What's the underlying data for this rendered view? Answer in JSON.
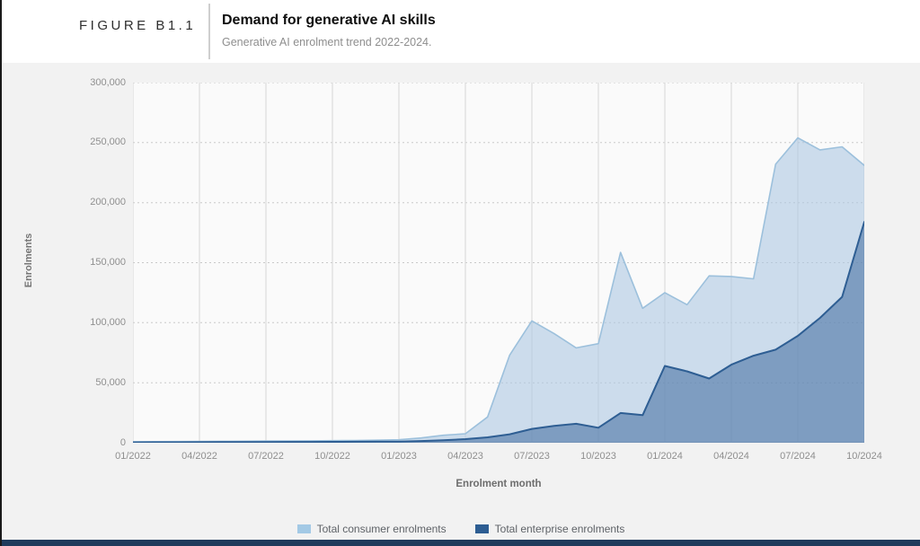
{
  "figure": {
    "label": "FIGURE B1.1",
    "title": "Demand for generative AI skills",
    "subtitle": "Generative AI enrolment trend 2022-2024."
  },
  "colors": {
    "page_background": "#ffffff",
    "chart_background": "#f2f2f2",
    "plot_background": "#fafafa",
    "left_border": "#1a1a1a",
    "bottom_bar": "#1f3b5c",
    "gridline_vertical": "#d6d6d6",
    "gridline_horizontal": "#c9c9c9",
    "tick_label": "#8f8f8f"
  },
  "chart_data": {
    "type": "area",
    "title": "Demand for generative AI skills",
    "xlabel": "Enrolment month",
    "ylabel": "Enrolments",
    "ylim": [
      0,
      300000
    ],
    "ytick_step": 50000,
    "ytick_labels": [
      "0",
      "50,000",
      "100,000",
      "150,000",
      "200,000",
      "250,000",
      "300,000"
    ],
    "xticks": [
      "01/2022",
      "04/2022",
      "07/2022",
      "10/2022",
      "01/2023",
      "04/2023",
      "07/2023",
      "10/2023",
      "01/2024",
      "04/2024",
      "07/2024",
      "10/2024"
    ],
    "x": [
      "01/2022",
      "02/2022",
      "03/2022",
      "04/2022",
      "05/2022",
      "06/2022",
      "07/2022",
      "08/2022",
      "09/2022",
      "10/2022",
      "11/2022",
      "12/2022",
      "01/2023",
      "02/2023",
      "03/2023",
      "04/2023",
      "05/2023",
      "06/2023",
      "07/2023",
      "08/2023",
      "09/2023",
      "10/2023",
      "11/2023",
      "12/2023",
      "01/2024",
      "02/2024",
      "03/2024",
      "04/2024",
      "05/2024",
      "06/2024",
      "07/2024",
      "08/2024",
      "09/2024",
      "10/2024"
    ],
    "series": [
      {
        "name": "Total consumer enrolments",
        "fill": "rgba(173,200,227,0.6)",
        "line": "#9cc0dc",
        "swatch": "#a3c9e5",
        "line_width": 1.6,
        "values": [
          800,
          900,
          1000,
          1100,
          1200,
          1300,
          1400,
          1500,
          1600,
          1700,
          1900,
          2100,
          2500,
          4000,
          6200,
          7500,
          21500,
          73000,
          101500,
          91000,
          79000,
          82500,
          158500,
          112000,
          125000,
          115000,
          139000,
          138500,
          136500,
          232000,
          254000,
          244000,
          246500,
          231000
        ]
      },
      {
        "name": "Total enterprise enrolments",
        "fill": "rgba(62,106,158,0.55)",
        "line": "#2e5e93",
        "swatch": "#2d5d92",
        "line_width": 2,
        "values": [
          300,
          350,
          400,
          450,
          500,
          550,
          600,
          650,
          700,
          750,
          800,
          900,
          1000,
          1400,
          2000,
          3000,
          4500,
          7000,
          11500,
          14000,
          15750,
          12500,
          24800,
          23000,
          64000,
          59500,
          53500,
          65000,
          72500,
          77500,
          89000,
          104000,
          121500,
          184000
        ]
      }
    ],
    "grid": {
      "vertical": "solid",
      "horizontal": "dotted"
    },
    "legend_position": "bottom"
  }
}
